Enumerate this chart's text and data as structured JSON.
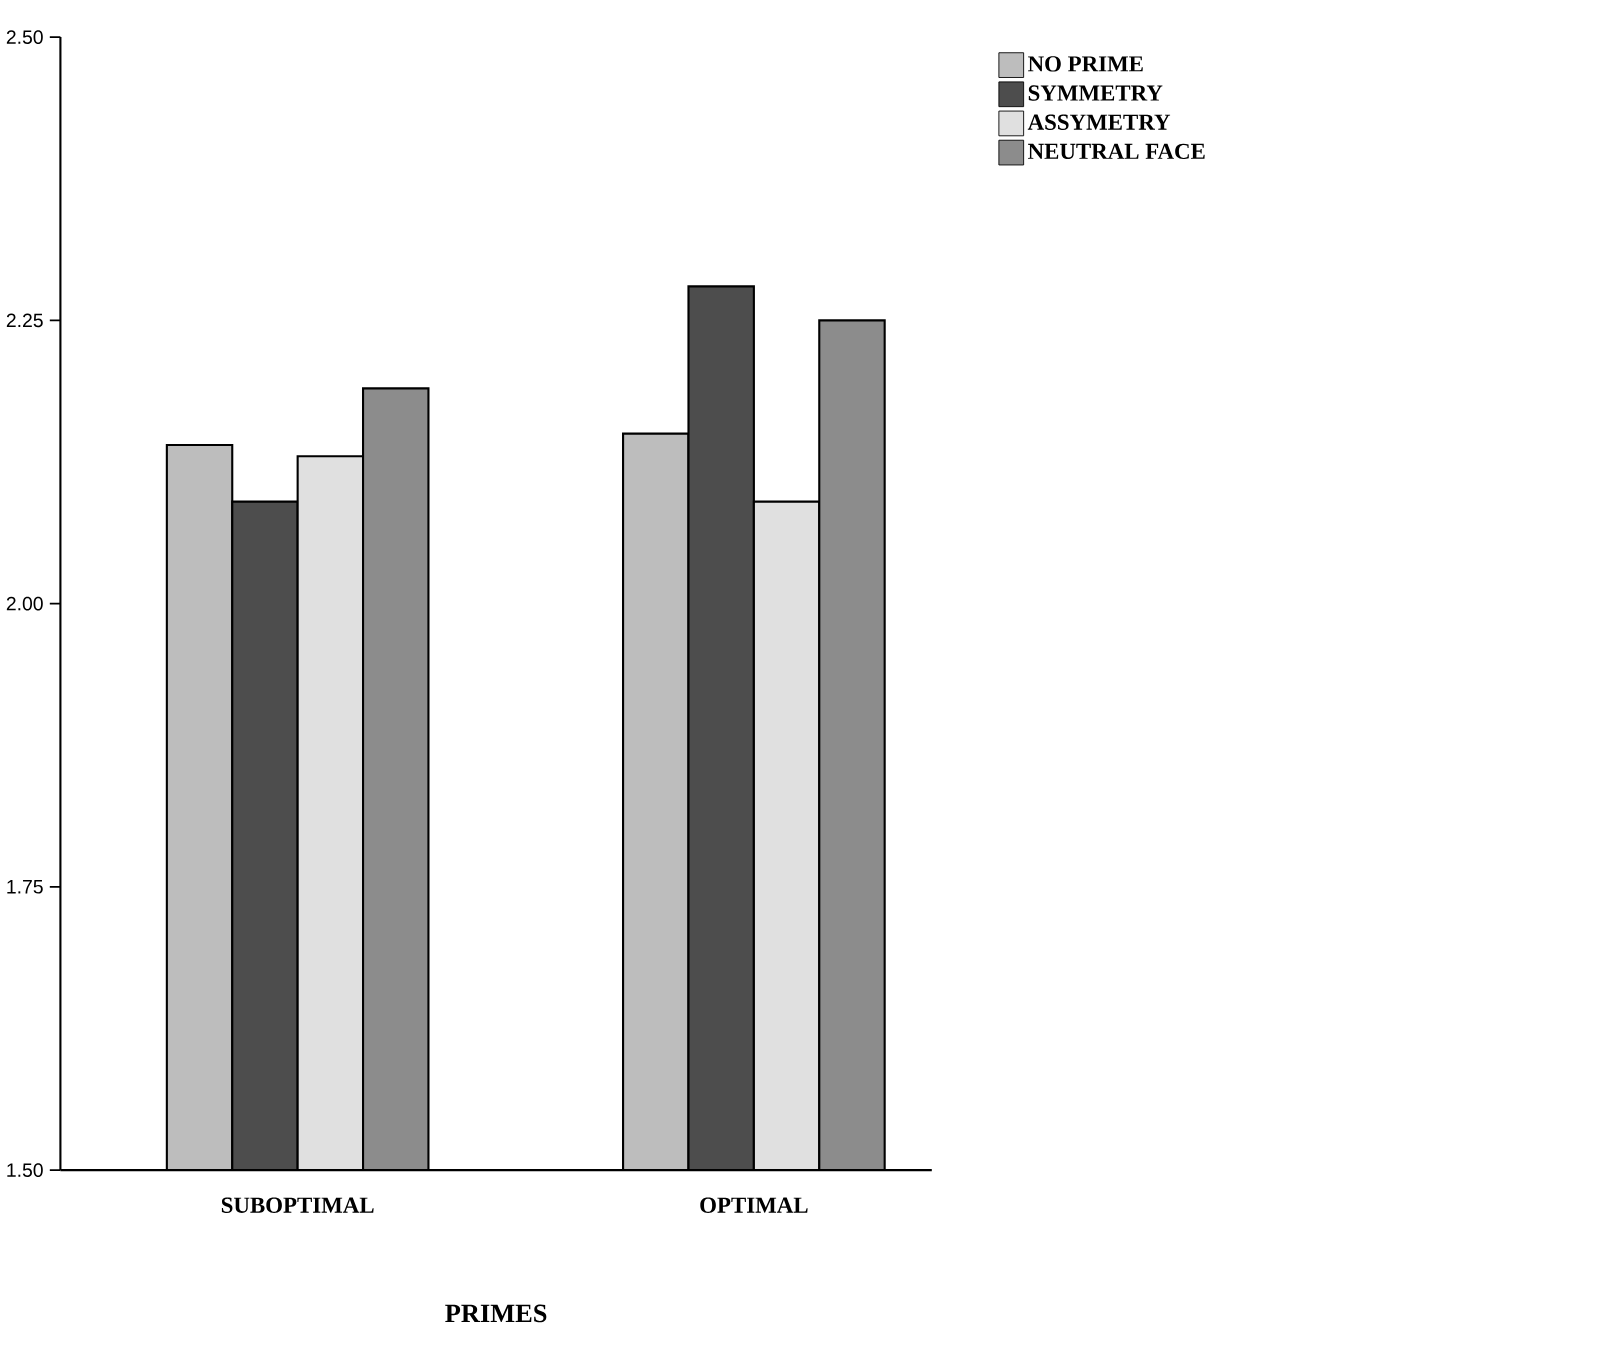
{
  "chart_data": {
    "type": "bar",
    "xlabel": "PRIMES",
    "categories": [
      "SUBOPTIMAL",
      "OPTIMAL"
    ],
    "series": [
      {
        "name": "NO PRIME",
        "color": "#bdbdbd",
        "values": [
          2.14,
          2.15
        ]
      },
      {
        "name": "SYMMETRY",
        "color": "#4d4d4d",
        "values": [
          2.09,
          2.28
        ]
      },
      {
        "name": "ASSYMETRY",
        "color": "#e0e0e0",
        "values": [
          2.13,
          2.09
        ]
      },
      {
        "name": "NEUTRAL FACE",
        "color": "#8c8c8c",
        "values": [
          2.19,
          2.25
        ]
      }
    ],
    "ylim": [
      1.5,
      2.5
    ],
    "yticks": [
      {
        "value": 1.5,
        "label": "1.50"
      },
      {
        "value": 1.75,
        "label": "1.75"
      },
      {
        "value": 2.0,
        "label": "2.00"
      },
      {
        "value": 2.25,
        "label": "2.25"
      },
      {
        "value": 2.5,
        "label": "2.50"
      }
    ],
    "grid": false,
    "legend": "top right"
  }
}
